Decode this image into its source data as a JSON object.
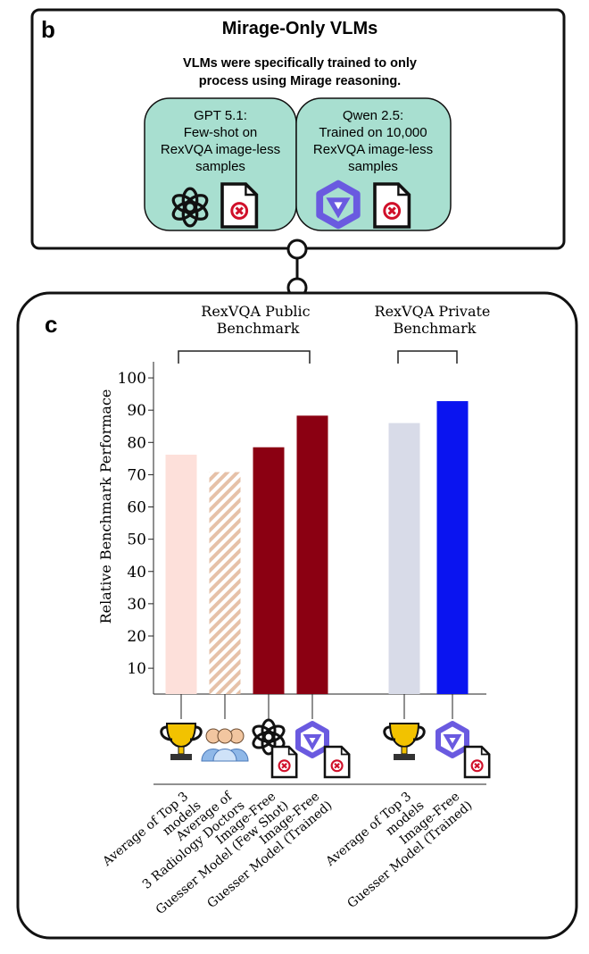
{
  "panel_b": {
    "label": "b",
    "title": "Mirage-Only VLMs",
    "subtitle": [
      "VLMs were specifically trained to only",
      "process using Mirage reasoning."
    ],
    "boxes": [
      {
        "lines": [
          "GPT 5.1:",
          "Few-shot on",
          "RexVQA image-less",
          "samples"
        ]
      },
      {
        "lines": [
          "Qwen 2.5:",
          "Trained on 10,000",
          "RexVQA image-less",
          "samples"
        ]
      }
    ]
  },
  "chart_data": {
    "type": "bar",
    "label": "c",
    "group_labels": [
      "RexVQA Public\nBenchmark",
      "RexVQA Private\nBenchmark"
    ],
    "y_label": "Relative Benchmark Performace",
    "categories": [
      "Average of Top 3\nmodels",
      "Average of\n3 Radiology Doctors",
      "Image-Free\nGuesser Model (Few Shot)",
      "Image-Free\nGuesser Model (Trained)",
      "Average of Top 3\nmodels",
      "Image-Free\nGuesser Model  (Trained)"
    ],
    "values": [
      76.2,
      70.8,
      78.5,
      88.3,
      86,
      92.8
    ],
    "colors": [
      "#fde0da",
      "#e6c1a8",
      "#8b0012",
      "#8b0012",
      "#d8dbe8",
      "#0a14f0"
    ],
    "hatch": [
      false,
      true,
      false,
      false,
      false,
      false
    ],
    "ylim": [
      2,
      105
    ],
    "yticks": [
      10,
      20,
      30,
      40,
      50,
      60,
      70,
      80,
      90,
      100
    ],
    "grid": false
  }
}
